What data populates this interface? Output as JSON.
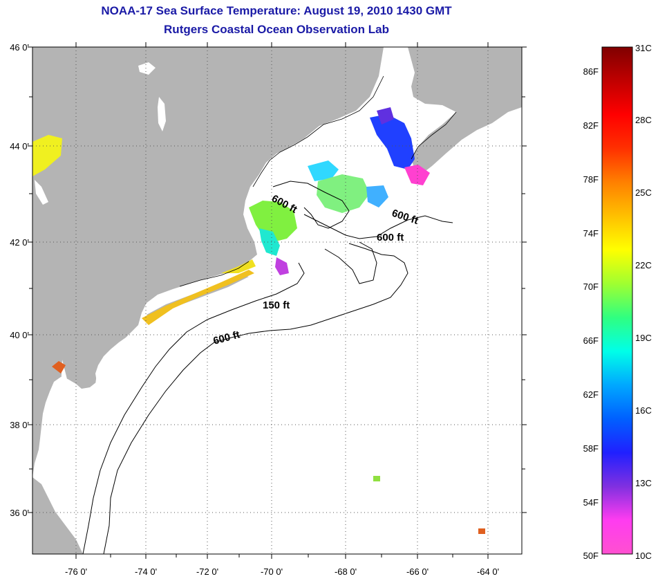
{
  "title": "NOAA-17 Sea Surface Temperature:  August 19, 2010 1430 GMT",
  "subtitle": "Rutgers Coastal Ocean Observation Lab",
  "map": {
    "lat_labels": [
      "46 0'",
      "44 0'",
      "42 0'",
      "40 0'",
      "38 0'",
      "36 0'"
    ],
    "lon_labels": [
      "-76 0'",
      "-74 0'",
      "-72 0'",
      "-70 0'",
      "-68 0'",
      "-66 0'",
      "-64 0'"
    ],
    "contour_labels": [
      "600 ft",
      "600 ft",
      "600 ft",
      "150 ft",
      "600 ft"
    ],
    "colors": {
      "land": "#b4b4b4",
      "ocean": "#ffffff",
      "grid": "#555555"
    }
  },
  "colorbar": {
    "fahrenheit": [
      "86F",
      "82F",
      "78F",
      "74F",
      "70F",
      "66F",
      "62F",
      "58F",
      "54F",
      "50F"
    ],
    "celsius": [
      "31C",
      "28C",
      "25C",
      "22C",
      "19C",
      "16C",
      "13C",
      "10C"
    ],
    "gradient": [
      "#ff50d0",
      "#ff3cf0",
      "#8030e0",
      "#2020ff",
      "#0060ff",
      "#00a8ff",
      "#00ffe8",
      "#30ff80",
      "#a0ff30",
      "#ffff00",
      "#ffc000",
      "#ff8000",
      "#ff3000",
      "#ff0000",
      "#c00000",
      "#800000"
    ]
  }
}
